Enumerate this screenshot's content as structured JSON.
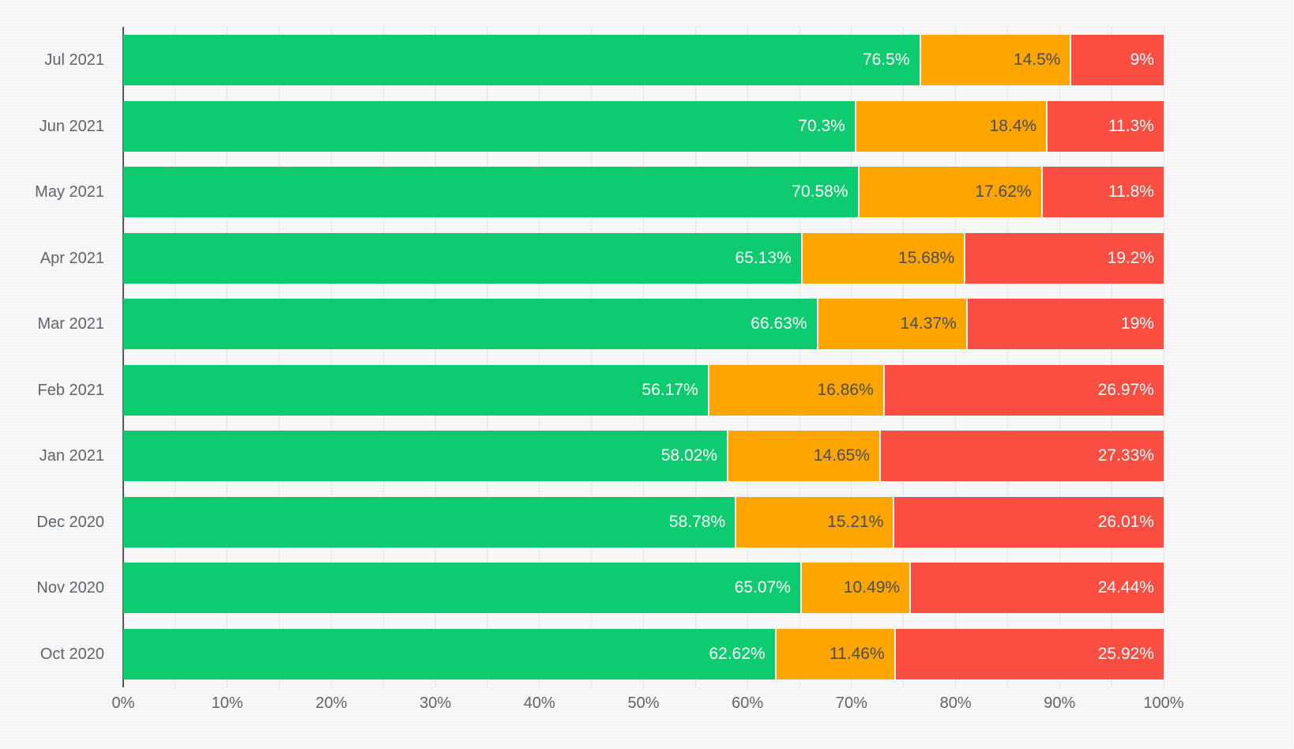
{
  "chart_data": {
    "type": "bar",
    "orientation": "horizontal",
    "stacked": true,
    "title": "",
    "legend_position": "none",
    "grid": "vertical",
    "categories": [
      "Jul 2021",
      "Jun 2021",
      "May 2021",
      "Apr 2021",
      "Mar 2021",
      "Feb 2021",
      "Jan 2021",
      "Dec 2020",
      "Nov 2020",
      "Oct 2020"
    ],
    "series": [
      {
        "name": "green",
        "color": "#0ecb6f",
        "text_color": "#ffffff",
        "values": [
          76.5,
          70.3,
          70.58,
          65.13,
          66.63,
          56.17,
          58.02,
          58.78,
          65.07,
          62.62
        ],
        "labels": [
          "76.5%",
          "70.3%",
          "70.58%",
          "65.13%",
          "66.63%",
          "56.17%",
          "58.02%",
          "58.78%",
          "65.07%",
          "62.62%"
        ]
      },
      {
        "name": "orange",
        "color": "#fea500",
        "text_color": "#4c4d4f",
        "values": [
          14.5,
          18.4,
          17.62,
          15.68,
          14.37,
          16.86,
          14.65,
          15.21,
          10.49,
          11.46
        ],
        "labels": [
          "14.5%",
          "18.4%",
          "17.62%",
          "15.68%",
          "14.37%",
          "16.86%",
          "14.65%",
          "15.21%",
          "10.49%",
          "11.46%"
        ]
      },
      {
        "name": "red",
        "color": "#fb4e43",
        "text_color": "#ffffff",
        "values": [
          9,
          11.3,
          11.8,
          19.2,
          19,
          26.97,
          27.33,
          26.01,
          24.44,
          25.92
        ],
        "labels": [
          "9%",
          "11.3%",
          "11.8%",
          "19.2%",
          "19%",
          "26.97%",
          "27.33%",
          "26.01%",
          "24.44%",
          "25.92%"
        ]
      }
    ],
    "x_axis": {
      "min": 0,
      "max": 100,
      "major_tick_step": 10,
      "minor_grid_step": 5,
      "tick_labels": [
        "0%",
        "10%",
        "20%",
        "30%",
        "40%",
        "50%",
        "60%",
        "70%",
        "80%",
        "90%",
        "100%"
      ]
    }
  },
  "theme": {
    "background": "#f8f8f8",
    "gridline": "#e5e5e7",
    "axis_line": "#55585d",
    "axis_text_color": "#5f6469"
  }
}
